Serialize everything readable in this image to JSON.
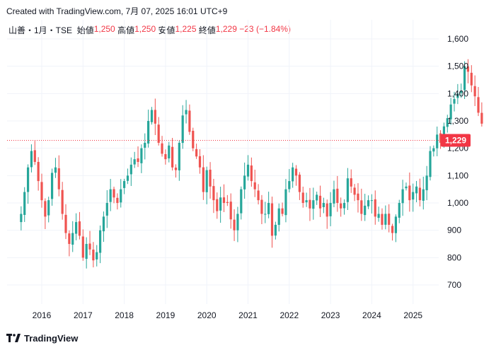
{
  "header": {
    "created_text": "Created with TradingView.com, 7月 07, 2025 16:01 UTC+9"
  },
  "legend": {
    "symbol": "山善・1月・TSE",
    "open_label": "始値",
    "open_value": "1,250",
    "high_label": "高値",
    "high_value": "1,250",
    "low_label": "安値",
    "low_value": "1,225",
    "close_label": "終値",
    "close_value": "1,229",
    "change": "−23 (−1.84%)"
  },
  "last_price_label": "1,229",
  "footer": {
    "brand": "TradingView"
  },
  "colors": {
    "up": "#26a69a",
    "down": "#ef5350",
    "grid": "#f0f3fa",
    "last_price": "#f23645",
    "text": "#131722"
  },
  "chart_data": {
    "type": "candlestick",
    "interval": "1M",
    "y_ticks": [
      700,
      800,
      900,
      1000,
      1100,
      1200,
      1300,
      1400,
      1500,
      1600
    ],
    "y_tick_labels": [
      "700",
      "800",
      "900",
      "1,000",
      "1,100",
      "1,200",
      "1,300",
      "1,400",
      "1,500",
      "1,600"
    ],
    "x_tick_labels": [
      "2016",
      "2017",
      "2018",
      "2019",
      "2020",
      "2021",
      "2022",
      "2023",
      "2024",
      "2025"
    ],
    "ylim": [
      640,
      1650
    ],
    "x_start": "2015-07",
    "last_close": 1229,
    "closes": [
      960,
      1040,
      1130,
      1190,
      1150,
      1080,
      1010,
      950,
      1010,
      1110,
      1130,
      1050,
      960,
      890,
      850,
      890,
      930,
      880,
      800,
      850,
      830,
      790,
      820,
      900,
      950,
      1000,
      1050,
      1020,
      1000,
      1050,
      1080,
      1100,
      1140,
      1160,
      1150,
      1200,
      1220,
      1300,
      1340,
      1290,
      1220,
      1180,
      1160,
      1210,
      1130,
      1120,
      1220,
      1320,
      1340,
      1260,
      1200,
      1170,
      1130,
      1040,
      1120,
      1060,
      1010,
      970,
      1020,
      1000,
      1000,
      940,
      900,
      960,
      1050,
      1100,
      1140,
      1080,
      1050,
      1010,
      960,
      960,
      1000,
      880,
      920,
      980,
      960,
      1050,
      1080,
      1130,
      1100,
      1040,
      1000,
      1010,
      980,
      1010,
      1030,
      980,
      1000,
      950,
      1000,
      1050,
      1000,
      980,
      1000,
      1090,
      1060,
      1030,
      1010,
      960,
      990,
      1010,
      1010,
      950,
      960,
      920,
      960,
      920,
      890,
      950,
      1000,
      1050,
      1060,
      1010,
      1040,
      1060,
      1010,
      1050,
      1100,
      1190,
      1200,
      1250,
      1220,
      1280,
      1310,
      1360,
      1380,
      1400,
      1410,
      1500,
      1480,
      1430,
      1390,
      1330,
      1290,
      1300,
      1310,
      1380,
      1420,
      1350,
      1280,
      1330,
      1300,
      1210,
      1250,
      1229
    ]
  }
}
